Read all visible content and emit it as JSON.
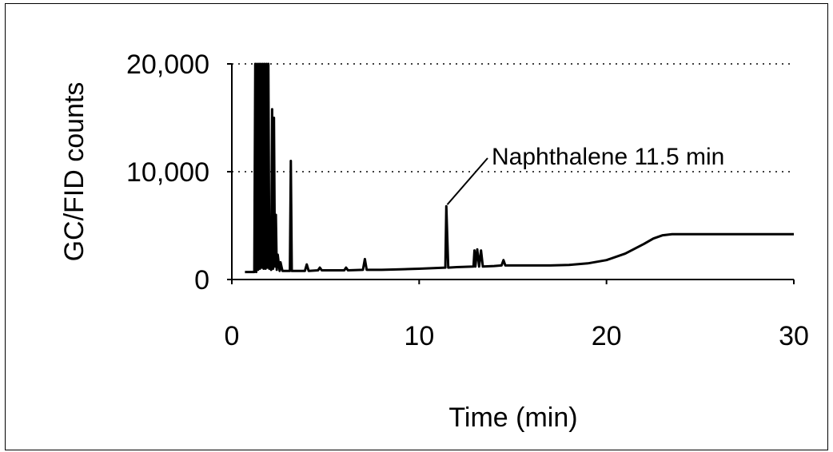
{
  "chart_data": {
    "type": "line",
    "title": "",
    "xlabel": "Time (min)",
    "ylabel": "GC/FID counts",
    "xlim": [
      0,
      30
    ],
    "ylim": [
      0,
      20000
    ],
    "x_ticks": [
      0,
      10,
      20,
      30
    ],
    "x_tick_labels": [
      "0",
      "10",
      "20",
      "30"
    ],
    "y_ticks": [
      0,
      10000,
      20000
    ],
    "y_tick_labels": [
      "0",
      "10,000",
      "20,000"
    ],
    "grid": "horizontal dotted at 10,000 and 20,000",
    "annotation": {
      "text": "Naphthalene 11.5 min",
      "x": 11.5,
      "y": 6800
    },
    "series": [
      {
        "color": "#000000",
        "points": [
          [
            0.7,
            700
          ],
          [
            1.2,
            700
          ],
          [
            1.25,
            20000
          ],
          [
            1.3,
            700
          ],
          [
            1.35,
            20000
          ],
          [
            1.4,
            900
          ],
          [
            1.45,
            20000
          ],
          [
            1.5,
            1000
          ],
          [
            1.55,
            20000
          ],
          [
            1.6,
            1100
          ],
          [
            1.65,
            20000
          ],
          [
            1.7,
            1000
          ],
          [
            1.75,
            20000
          ],
          [
            1.8,
            1000
          ],
          [
            1.85,
            20000
          ],
          [
            1.9,
            1100
          ],
          [
            1.95,
            20000
          ],
          [
            2.0,
            1000
          ],
          [
            2.05,
            4000
          ],
          [
            2.1,
            900
          ],
          [
            2.15,
            15800
          ],
          [
            2.2,
            1000
          ],
          [
            2.25,
            15000
          ],
          [
            2.3,
            1200
          ],
          [
            2.35,
            6000
          ],
          [
            2.4,
            900
          ],
          [
            2.45,
            2300
          ],
          [
            2.55,
            800
          ],
          [
            2.6,
            1600
          ],
          [
            2.7,
            800
          ],
          [
            3.0,
            800
          ],
          [
            3.1,
            800
          ],
          [
            3.15,
            11000
          ],
          [
            3.2,
            800
          ],
          [
            3.9,
            800
          ],
          [
            4.0,
            1400
          ],
          [
            4.1,
            800
          ],
          [
            4.6,
            850
          ],
          [
            4.7,
            1100
          ],
          [
            4.8,
            850
          ],
          [
            6.0,
            850
          ],
          [
            6.1,
            1100
          ],
          [
            6.2,
            850
          ],
          [
            7.0,
            900
          ],
          [
            7.1,
            1900
          ],
          [
            7.2,
            900
          ],
          [
            8.0,
            900
          ],
          [
            9.0,
            950
          ],
          [
            10.0,
            1000
          ],
          [
            11.4,
            1100
          ],
          [
            11.45,
            6800
          ],
          [
            11.55,
            1100
          ],
          [
            12.0,
            1150
          ],
          [
            12.9,
            1200
          ],
          [
            12.95,
            2700
          ],
          [
            13.0,
            1200
          ],
          [
            13.1,
            2800
          ],
          [
            13.2,
            1200
          ],
          [
            13.3,
            2700
          ],
          [
            13.4,
            1200
          ],
          [
            14.0,
            1250
          ],
          [
            14.4,
            1300
          ],
          [
            14.5,
            1800
          ],
          [
            14.6,
            1300
          ],
          [
            15.0,
            1300
          ],
          [
            16.0,
            1300
          ],
          [
            17.0,
            1300
          ],
          [
            18.0,
            1350
          ],
          [
            19.0,
            1500
          ],
          [
            20.0,
            1800
          ],
          [
            21.0,
            2400
          ],
          [
            22.0,
            3300
          ],
          [
            22.5,
            3800
          ],
          [
            23.0,
            4100
          ],
          [
            23.5,
            4200
          ],
          [
            24.0,
            4200
          ],
          [
            25.0,
            4200
          ],
          [
            26.0,
            4200
          ],
          [
            27.0,
            4200
          ],
          [
            28.0,
            4200
          ],
          [
            29.0,
            4200
          ],
          [
            30.0,
            4200
          ]
        ]
      }
    ]
  }
}
